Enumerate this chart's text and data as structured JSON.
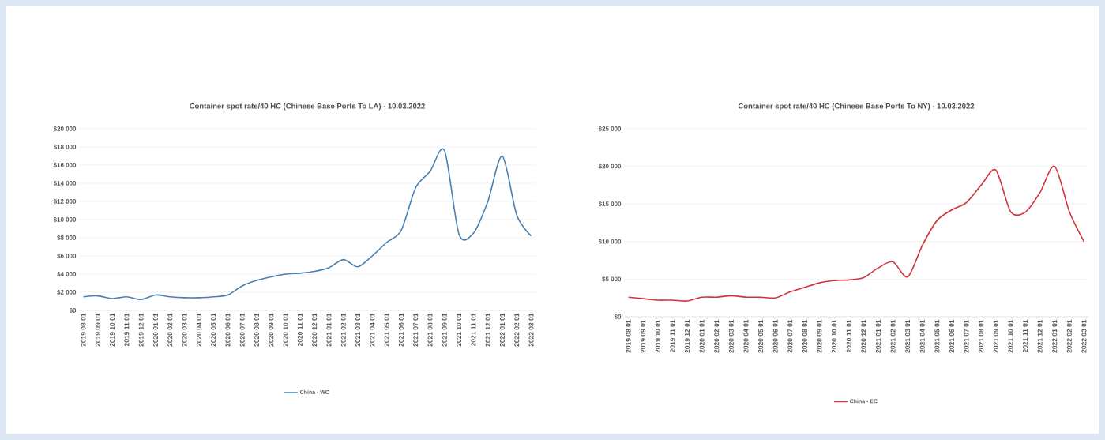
{
  "chart_data": [
    {
      "type": "line",
      "title": "Container spot rate/40 HC (Chinese Base Ports To LA) - 10.03.2022",
      "categories": [
        "2019 08 01",
        "2019 09 01",
        "2019 10 01",
        "2019 11 01",
        "2019 12 01",
        "2020 01 01",
        "2020 02 01",
        "2020 03 01",
        "2020 04 01",
        "2020 05 01",
        "2020 06 01",
        "2020 07 01",
        "2020 08 01",
        "2020 09 01",
        "2020 10 01",
        "2020 11 01",
        "2020 12 01",
        "2021 01 01",
        "2021 02 01",
        "2021 03 01",
        "2021 04 01",
        "2021 05 01",
        "2021 06 01",
        "2021 07 01",
        "2021 08 01",
        "2021 09 01",
        "2021 10 01",
        "2021 11 01",
        "2021 12 01",
        "2022 01 01",
        "2022 02 01",
        "2022 03 01"
      ],
      "series": [
        {
          "name": "China - WC",
          "color": "#4a7fb0",
          "values": [
            1500,
            1600,
            1300,
            1500,
            1200,
            1700,
            1500,
            1400,
            1400,
            1500,
            1700,
            2700,
            3300,
            3700,
            4000,
            4100,
            4300,
            4700,
            5600,
            4800,
            6000,
            7500,
            8800,
            13500,
            15300,
            17600,
            8400,
            8500,
            12000,
            17000,
            10500,
            8200
          ]
        }
      ],
      "ylim": [
        0,
        20000
      ],
      "yticks": [
        {
          "value": 0,
          "label": "$0"
        },
        {
          "value": 2000,
          "label": "$2 000"
        },
        {
          "value": 4000,
          "label": "$4 000"
        },
        {
          "value": 6000,
          "label": "$6 000"
        },
        {
          "value": 8000,
          "label": "$8 000"
        },
        {
          "value": 10000,
          "label": "$10 000"
        },
        {
          "value": 12000,
          "label": "$12 000"
        },
        {
          "value": 14000,
          "label": "$14 000"
        },
        {
          "value": 16000,
          "label": "$16 000"
        },
        {
          "value": 18000,
          "label": "$18 000"
        },
        {
          "value": 20000,
          "label": "$20 000"
        }
      ],
      "grid": "y",
      "legend": "bottom"
    },
    {
      "type": "line",
      "title": "Container spot rate/40 HC (Chinese Base Ports To NY) - 10.03.2022",
      "categories": [
        "2019 08 01",
        "2019 09 01",
        "2019 10 01",
        "2019 11 01",
        "2019 12 01",
        "2020 01 01",
        "2020 02 01",
        "2020 03 01",
        "2020 04 01",
        "2020 05 01",
        "2020 06 01",
        "2020 07 01",
        "2020 08 01",
        "2020 09 01",
        "2020 10 01",
        "2020 11 01",
        "2020 12 01",
        "2021 01 01",
        "2021 02 01",
        "2021 03 01",
        "2021 04 01",
        "2021 05 01",
        "2021 06 01",
        "2021 07 01",
        "2021 08 01",
        "2021 09 01",
        "2021 10 01",
        "2021 11 01",
        "2021 12 01",
        "2022 01 01",
        "2022 02 01",
        "2022 03 01"
      ],
      "series": [
        {
          "name": "China - EC",
          "color": "#d0343a",
          "values": [
            2600,
            2400,
            2200,
            2200,
            2100,
            2600,
            2600,
            2800,
            2600,
            2600,
            2500,
            3300,
            3900,
            4500,
            4800,
            4900,
            5200,
            6500,
            7300,
            5300,
            9500,
            12800,
            14200,
            15200,
            17500,
            19500,
            14000,
            13900,
            16500,
            20000,
            14000,
            10000
          ]
        }
      ],
      "ylim": [
        0,
        25000
      ],
      "yticks": [
        {
          "value": 0,
          "label": "$0"
        },
        {
          "value": 5000,
          "label": "$5 000"
        },
        {
          "value": 10000,
          "label": "$10 000"
        },
        {
          "value": 15000,
          "label": "$15 000"
        },
        {
          "value": 20000,
          "label": "$20 000"
        },
        {
          "value": 25000,
          "label": "$25 000"
        }
      ],
      "grid": "y",
      "legend": "bottom"
    }
  ]
}
